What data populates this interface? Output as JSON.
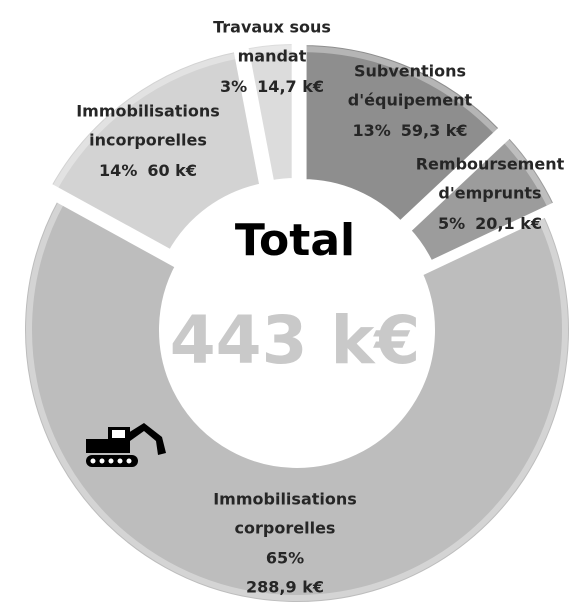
{
  "chart_data": {
    "type": "donut",
    "title": "Total",
    "total": {
      "value": 443,
      "label": "443 k€"
    },
    "categories": [
      [
        "Subventions",
        "d'équipement"
      ],
      [
        "Remboursement",
        "d'emprunts"
      ],
      [
        "Immobilisations",
        "corporelles"
      ],
      [
        "Immobilisations",
        "incorporelles"
      ],
      [
        "Travaux sous",
        "mandat"
      ]
    ],
    "values": [
      13,
      5,
      65,
      14,
      3
    ],
    "value_labels": [
      "13%",
      "5%",
      "65%",
      "14%",
      "3%"
    ],
    "amounts": [
      {
        "value": 59.3,
        "label": "59,3 k€"
      },
      {
        "value": 20.1,
        "label": "20,1 k€"
      },
      {
        "value": 288.9,
        "label": "288,9 k€"
      },
      {
        "value": 60,
        "label": "60 k€"
      },
      {
        "value": 14.7,
        "label": "14,7 k€"
      }
    ],
    "colors": [
      "#8e8e8e",
      "#9c9c9c",
      "#bdbdbd",
      "#d3d3d3",
      "#dcdcdc"
    ]
  }
}
